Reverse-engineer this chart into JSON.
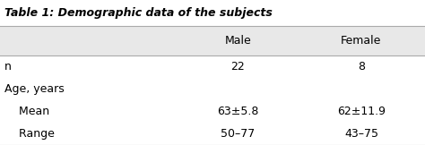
{
  "title": "Table 1: Demographic data of the subjects",
  "col_headers": [
    "",
    "Male",
    "Female"
  ],
  "rows": [
    [
      "n",
      "22",
      "8"
    ],
    [
      "Age, years",
      "",
      ""
    ],
    [
      "    Mean",
      "63±5.8",
      "62±11.9"
    ],
    [
      "    Range",
      "50–77",
      "43–75"
    ]
  ],
  "header_bg": "#e8e8e8",
  "body_bg": "#ffffff",
  "line_color": "#aaaaaa",
  "title_color": "#000000",
  "text_color": "#000000",
  "font_size": 9,
  "title_font_size": 9
}
